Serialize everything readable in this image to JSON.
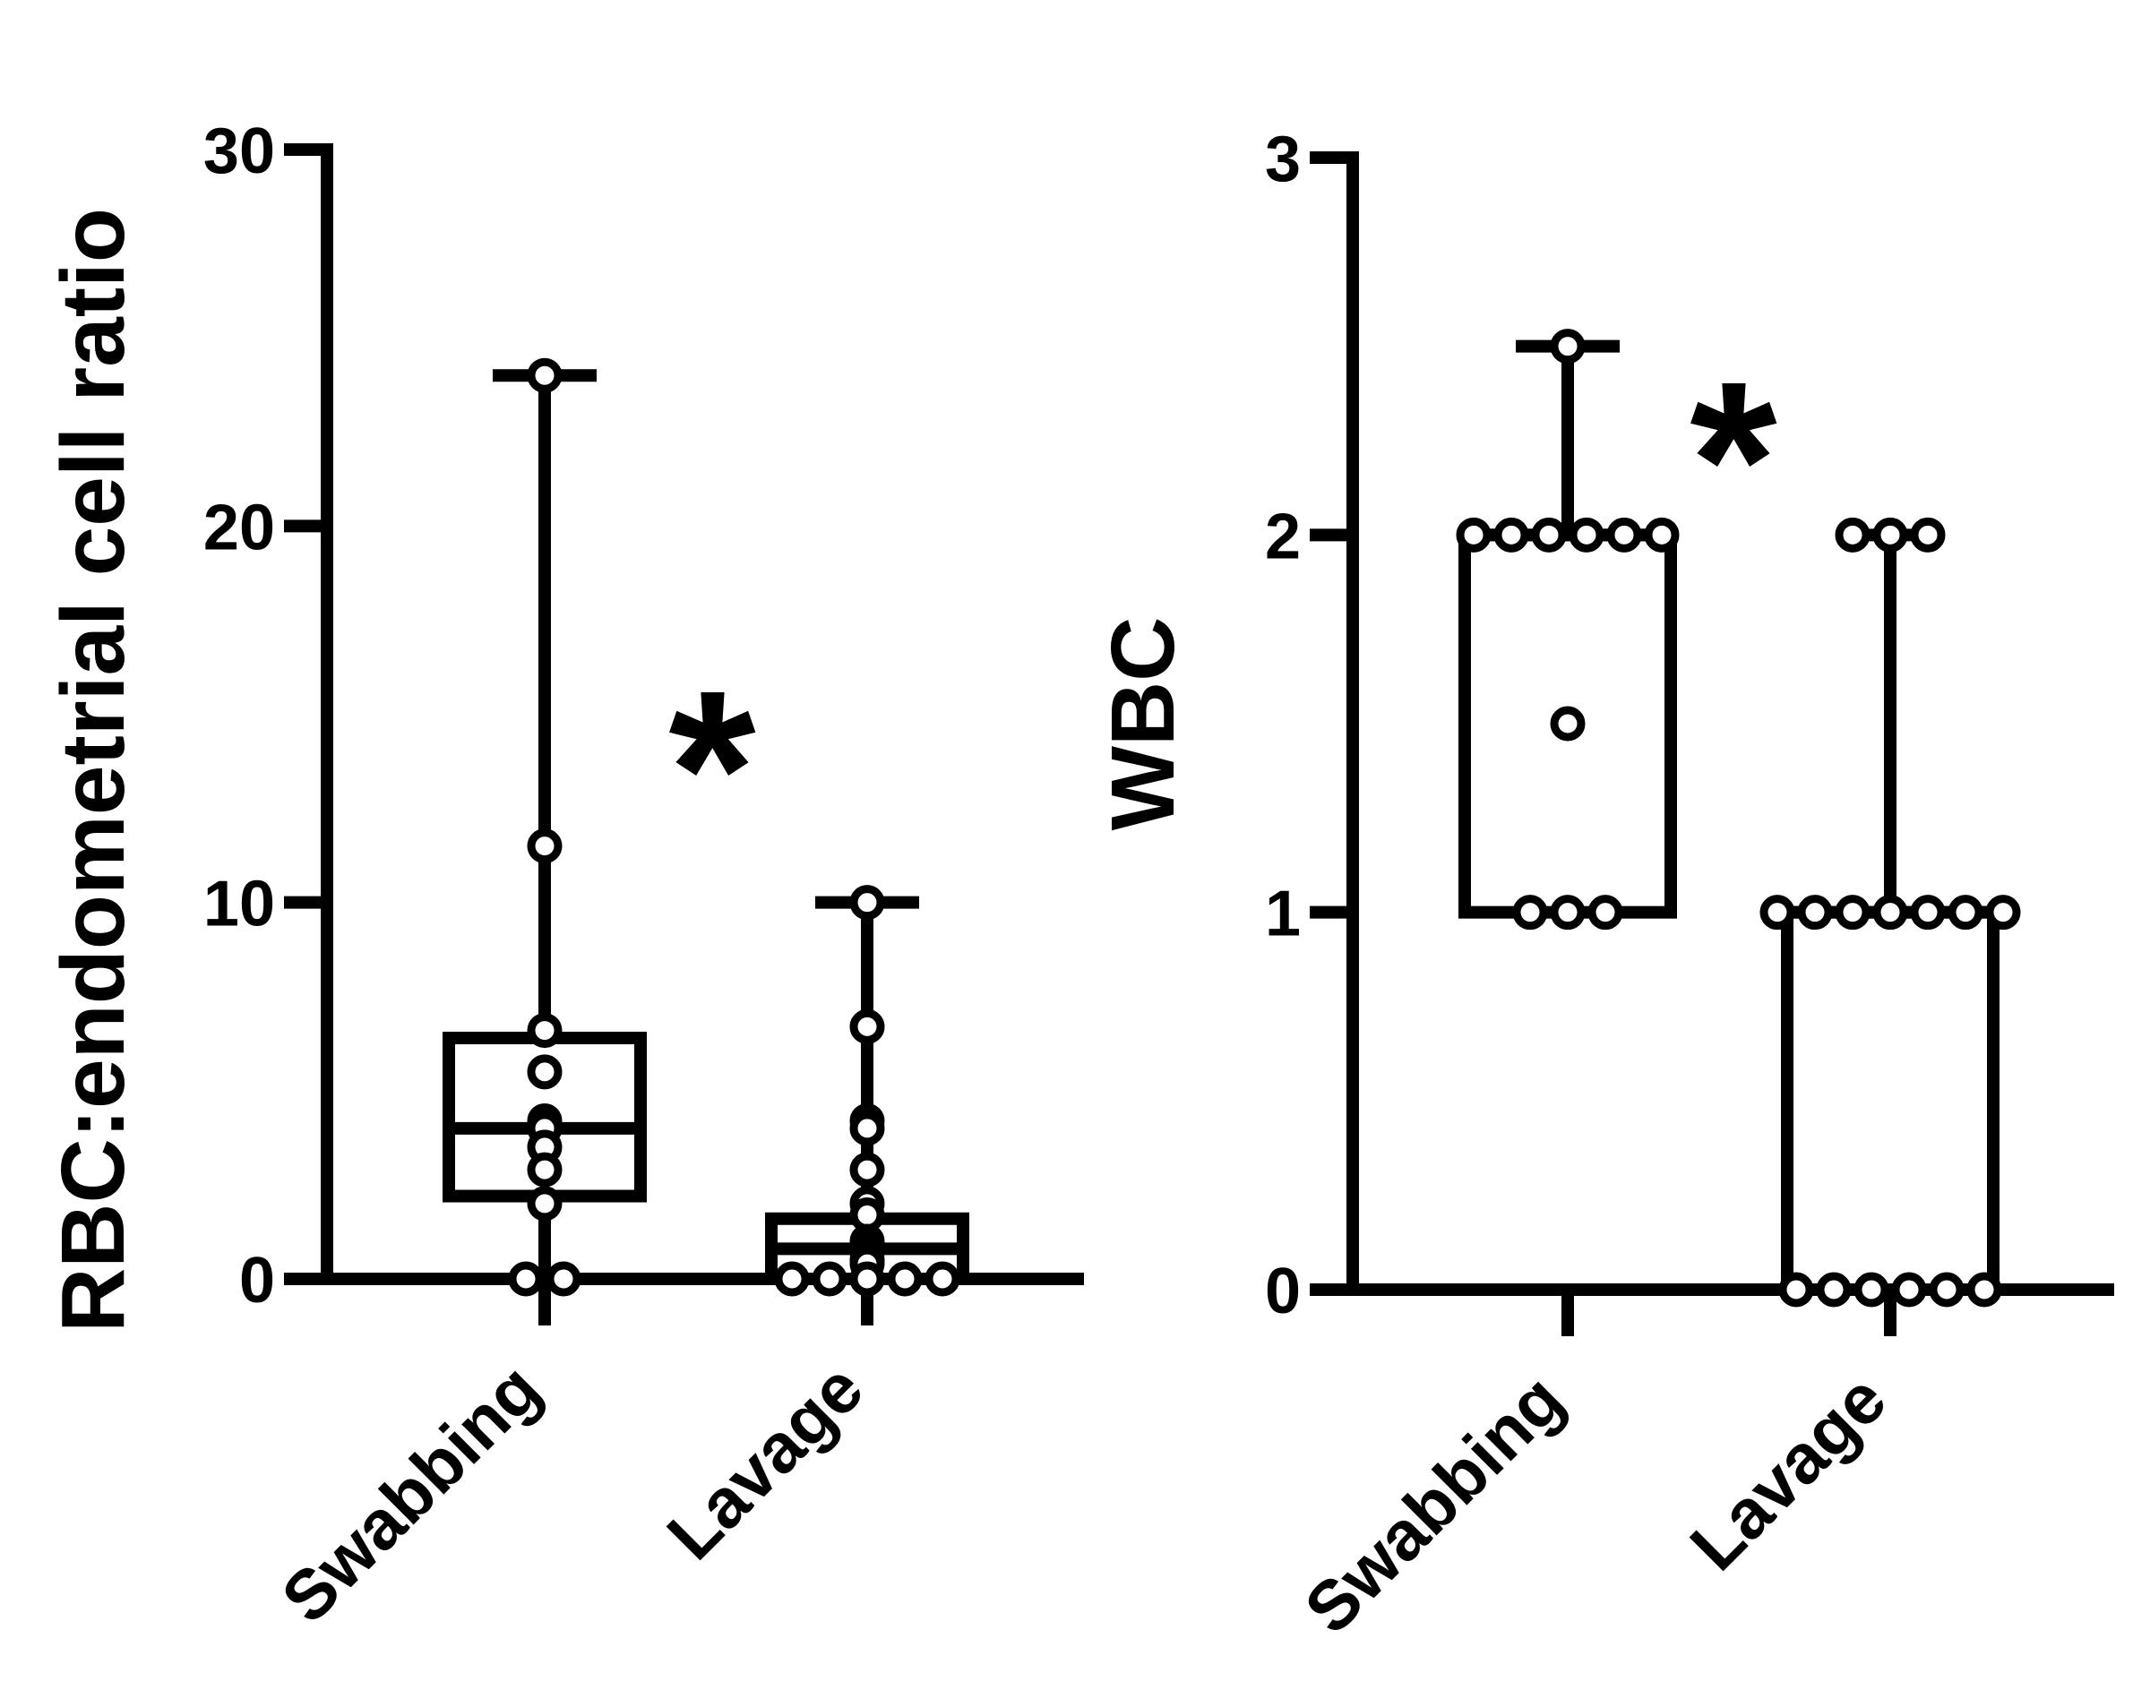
{
  "chart_data": [
    {
      "type": "box",
      "title": "",
      "ylabel": "RBC:endometrial cell ratio",
      "xlabel": "",
      "categories": [
        "Swabbing",
        "Lavage"
      ],
      "ylim": [
        0,
        30
      ],
      "yticks": [
        0,
        10,
        20,
        30
      ],
      "ytick_labels": [
        "0",
        "10",
        "20",
        "30"
      ],
      "grid": false,
      "annotation": "*",
      "boxes": [
        {
          "category": "Swabbing",
          "min": 0,
          "q1": 2.2,
          "median": 4.0,
          "q3": 6.4,
          "max": 24
        },
        {
          "category": "Lavage",
          "min": 0,
          "q1": 0,
          "median": 0.8,
          "q3": 1.6,
          "max": 10
        }
      ],
      "points": [
        [
          24,
          11.5,
          6.6,
          5.5,
          4.2,
          4.0,
          3.5,
          2.9,
          2.0,
          0,
          0
        ],
        [
          10,
          6.7,
          4.2,
          4.0,
          2.9,
          2.0,
          1.7,
          1.0,
          0.9,
          0.8,
          0.7,
          0.5,
          0.4,
          0,
          0,
          0,
          0,
          0
        ]
      ]
    },
    {
      "type": "box",
      "title": "",
      "ylabel": "WBC",
      "xlabel": "",
      "categories": [
        "Swabbing",
        "Lavage"
      ],
      "ylim": [
        0,
        3
      ],
      "yticks": [
        0,
        1,
        2,
        3
      ],
      "ytick_labels": [
        "0",
        "1",
        "2",
        "3"
      ],
      "grid": false,
      "annotation": "*",
      "boxes": [
        {
          "category": "Swabbing",
          "min": 1,
          "q1": 1,
          "median": 2,
          "q3": 2,
          "max": 2.5
        },
        {
          "category": "Lavage",
          "min": 0,
          "q1": 0,
          "median": 1,
          "q3": 1,
          "max": 2
        }
      ],
      "points": [
        [
          2.5,
          2,
          2,
          2,
          2,
          2,
          2,
          1.5,
          1,
          1,
          1
        ],
        [
          2,
          2,
          2,
          1,
          1,
          1,
          1,
          1,
          1,
          1,
          0,
          0,
          0,
          0,
          0,
          0
        ]
      ]
    }
  ]
}
